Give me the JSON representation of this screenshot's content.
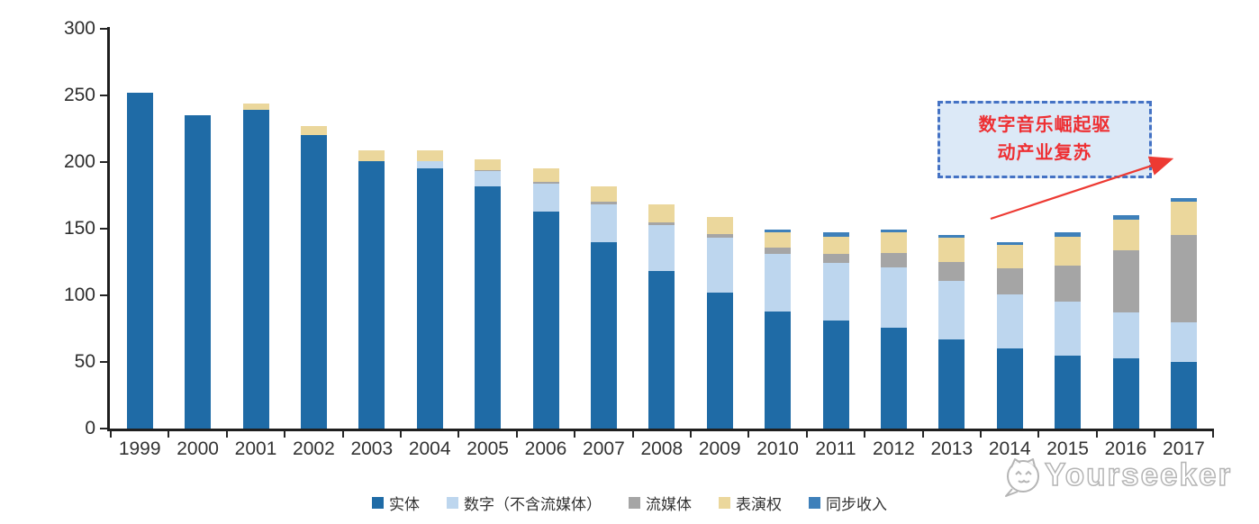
{
  "chart_data": {
    "type": "bar",
    "stacked": true,
    "title": "",
    "xlabel": "",
    "ylabel": "",
    "categories": [
      "1999",
      "2000",
      "2001",
      "2002",
      "2003",
      "2004",
      "2005",
      "2006",
      "2007",
      "2008",
      "2009",
      "2010",
      "2011",
      "2012",
      "2013",
      "2014",
      "2015",
      "2016",
      "2017"
    ],
    "series": [
      {
        "name": "实体",
        "color": "#1F6BA6",
        "values": [
          252,
          235,
          239,
          220,
          201,
          195,
          182,
          163,
          140,
          118,
          102,
          88,
          81,
          76,
          67,
          60,
          55,
          53,
          50
        ]
      },
      {
        "name": "数字（不含流媒体）",
        "color": "#BDD6EE",
        "values": [
          0,
          0,
          0,
          0,
          0,
          6,
          11,
          21,
          28,
          35,
          41,
          43,
          43,
          45,
          44,
          41,
          40,
          34,
          30
        ]
      },
      {
        "name": "流媒体",
        "color": "#A5A5A5",
        "values": [
          0,
          0,
          0,
          0,
          0,
          0,
          1,
          1,
          2,
          2,
          3,
          5,
          7,
          11,
          14,
          19,
          27,
          47,
          65
        ]
      },
      {
        "name": "表演权",
        "color": "#EBD79C",
        "values": [
          0,
          0,
          5,
          7,
          8,
          8,
          8,
          10,
          12,
          13,
          13,
          11,
          13,
          15,
          18,
          18,
          22,
          23,
          25
        ]
      },
      {
        "name": "同步收入",
        "color": "#3E80BA",
        "values": [
          0,
          0,
          0,
          0,
          0,
          0,
          0,
          0,
          0,
          0,
          0,
          2,
          3,
          2,
          2,
          2,
          3,
          3,
          3
        ]
      }
    ],
    "totals": [
      252,
      235,
      244,
      227,
      209,
      209,
      202,
      195,
      182,
      168,
      159,
      149,
      147,
      149,
      145,
      140,
      147,
      160,
      173
    ],
    "ylim": [
      0,
      300
    ],
    "yticks": [
      0,
      50,
      100,
      150,
      200,
      250,
      300
    ],
    "grid": false,
    "legend_position": "bottom"
  },
  "annotation": {
    "line1": "数字音乐崛起驱",
    "line2": "动产业复苏",
    "text_color": "#ee2f33",
    "box_fill": "#dce9f7",
    "box_border": "#4472c4",
    "arrow_color": "#ed3a33"
  },
  "watermark": {
    "text": "Yourseeker",
    "logo": "cat-logo",
    "color": "#b5b5b5"
  }
}
